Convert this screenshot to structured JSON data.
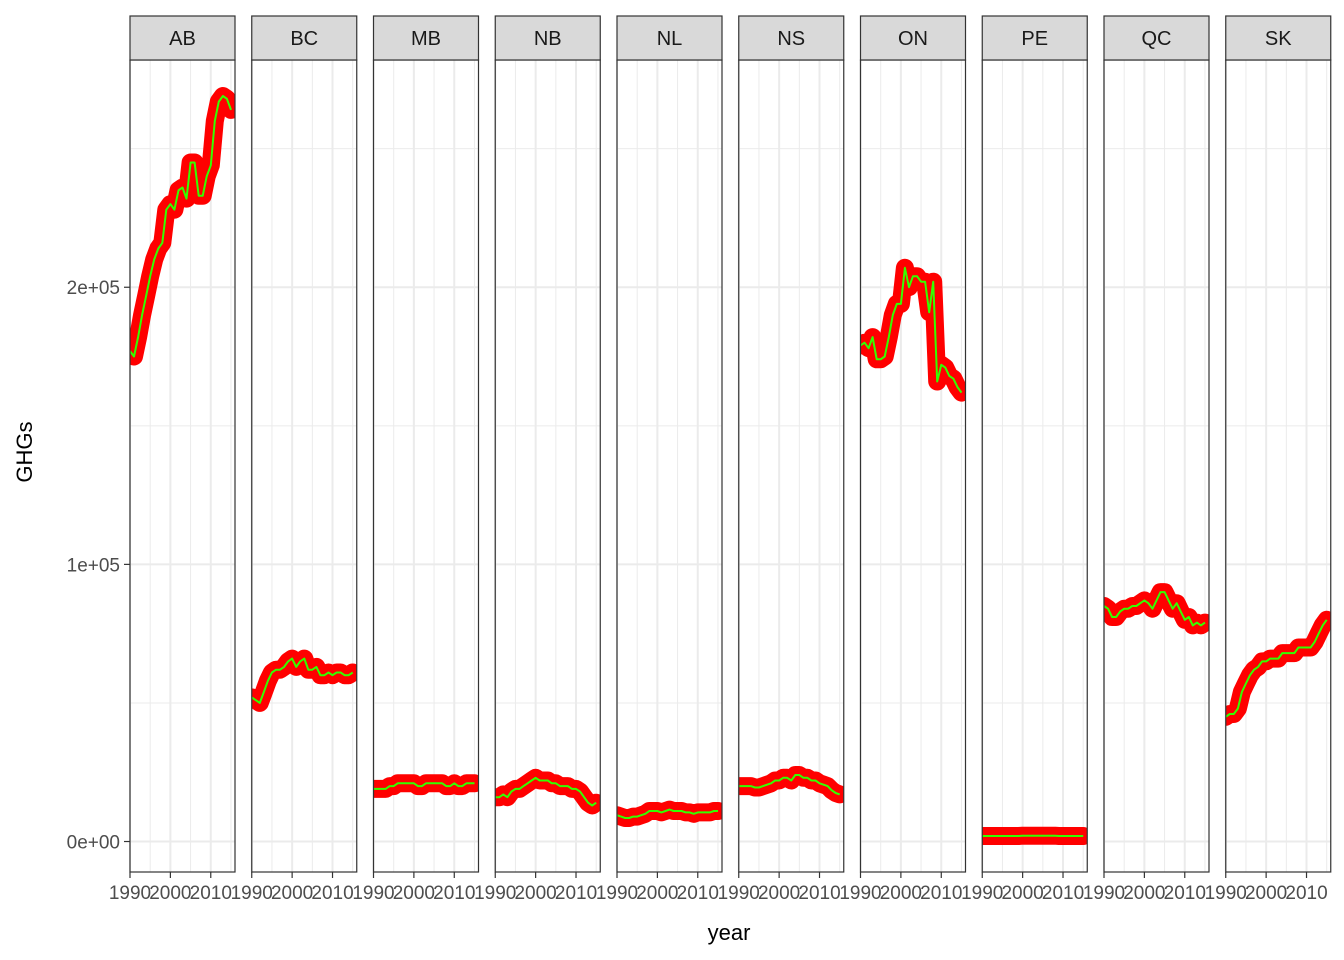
{
  "chart_data": {
    "type": "line",
    "title": "",
    "xlabel": "year",
    "ylabel": "GHGs",
    "facet_by": "province",
    "xlim": [
      1990,
      2016
    ],
    "ylim": [
      -11000,
      282000
    ],
    "x_ticks": [
      1990,
      2000,
      2010
    ],
    "x_tick_labels": [
      "1990",
      "2000",
      "2010"
    ],
    "y_ticks": [
      0,
      100000,
      200000
    ],
    "y_tick_labels": [
      "0e+00",
      "1e+05",
      "2e+05"
    ],
    "grid": true,
    "legend": "none",
    "colors": {
      "thick_line": "#ff0000",
      "thin_line": "#33ff00",
      "strip": "#d9d9d9",
      "grid": "#ebebeb"
    },
    "x": [
      1990,
      1991,
      1992,
      1993,
      1994,
      1995,
      1996,
      1997,
      1998,
      1999,
      2000,
      2001,
      2002,
      2003,
      2004,
      2005,
      2006,
      2007,
      2008,
      2009,
      2010,
      2011,
      2012,
      2013,
      2014,
      2015
    ],
    "series": [
      {
        "name": "AB",
        "values": [
          177000,
          175000,
          182000,
          190000,
          197000,
          204000,
          210000,
          214000,
          216000,
          228000,
          230000,
          228000,
          235000,
          236000,
          232000,
          245000,
          245000,
          233000,
          233000,
          240000,
          244000,
          260000,
          267000,
          269000,
          268000,
          264000
        ]
      },
      {
        "name": "BC",
        "values": [
          52000,
          51000,
          50000,
          54000,
          58000,
          61000,
          62000,
          62000,
          63000,
          65000,
          66000,
          63000,
          65000,
          66000,
          62000,
          62000,
          63000,
          60000,
          60000,
          61000,
          60000,
          61000,
          61000,
          60000,
          60000,
          61000
        ]
      },
      {
        "name": "MB",
        "values": [
          19000,
          19000,
          19000,
          19000,
          20000,
          20000,
          21000,
          21000,
          21000,
          21000,
          21000,
          20000,
          20000,
          21000,
          21000,
          21000,
          21000,
          21000,
          20000,
          20000,
          21000,
          20000,
          20000,
          21000,
          21000,
          21000
        ]
      },
      {
        "name": "NB",
        "values": [
          16000,
          16000,
          17000,
          16000,
          18000,
          19000,
          19000,
          20000,
          21000,
          22000,
          23000,
          22000,
          22000,
          22000,
          21000,
          21000,
          20000,
          20000,
          20000,
          19000,
          19000,
          18000,
          16000,
          14000,
          13000,
          14000
        ]
      },
      {
        "name": "NL",
        "values": [
          9500,
          9000,
          8500,
          8500,
          9000,
          9000,
          9500,
          10000,
          11000,
          11000,
          11000,
          10500,
          11000,
          11500,
          11000,
          11000,
          11000,
          10500,
          10500,
          10000,
          10500,
          10500,
          10500,
          10500,
          11000,
          11000
        ]
      },
      {
        "name": "NS",
        "values": [
          20000,
          20000,
          20000,
          20000,
          19500,
          19500,
          20000,
          20500,
          21000,
          22000,
          22000,
          23000,
          23000,
          22000,
          24000,
          24000,
          23000,
          23000,
          22000,
          22000,
          21000,
          20500,
          20000,
          18500,
          17500,
          17000
        ]
      },
      {
        "name": "ON",
        "values": [
          179000,
          180000,
          178000,
          182000,
          174000,
          174000,
          175000,
          182000,
          190000,
          194000,
          194000,
          207000,
          200000,
          204000,
          204000,
          202000,
          202000,
          191000,
          202000,
          166000,
          172000,
          171000,
          168000,
          167000,
          164000,
          162000
        ]
      },
      {
        "name": "PE",
        "values": [
          2000,
          2000,
          2000,
          2000,
          2000,
          2000,
          2000,
          2000,
          2000,
          2000,
          2100,
          2100,
          2100,
          2100,
          2100,
          2100,
          2100,
          2100,
          2100,
          2000,
          2000,
          2000,
          2000,
          2000,
          2000,
          2000
        ]
      },
      {
        "name": "QC",
        "values": [
          85000,
          84000,
          81000,
          81000,
          83000,
          84000,
          84000,
          85000,
          85000,
          86000,
          87000,
          86000,
          84000,
          87000,
          90000,
          90000,
          87000,
          84000,
          86000,
          83000,
          80000,
          81000,
          78000,
          79000,
          78000,
          79000
        ]
      },
      {
        "name": "SK",
        "values": [
          45000,
          46000,
          46000,
          48000,
          54000,
          57000,
          60000,
          62000,
          63000,
          65000,
          65000,
          66000,
          66000,
          66000,
          68000,
          68000,
          68000,
          68000,
          70000,
          70000,
          70000,
          70000,
          72000,
          75000,
          78000,
          80000
        ]
      }
    ]
  }
}
